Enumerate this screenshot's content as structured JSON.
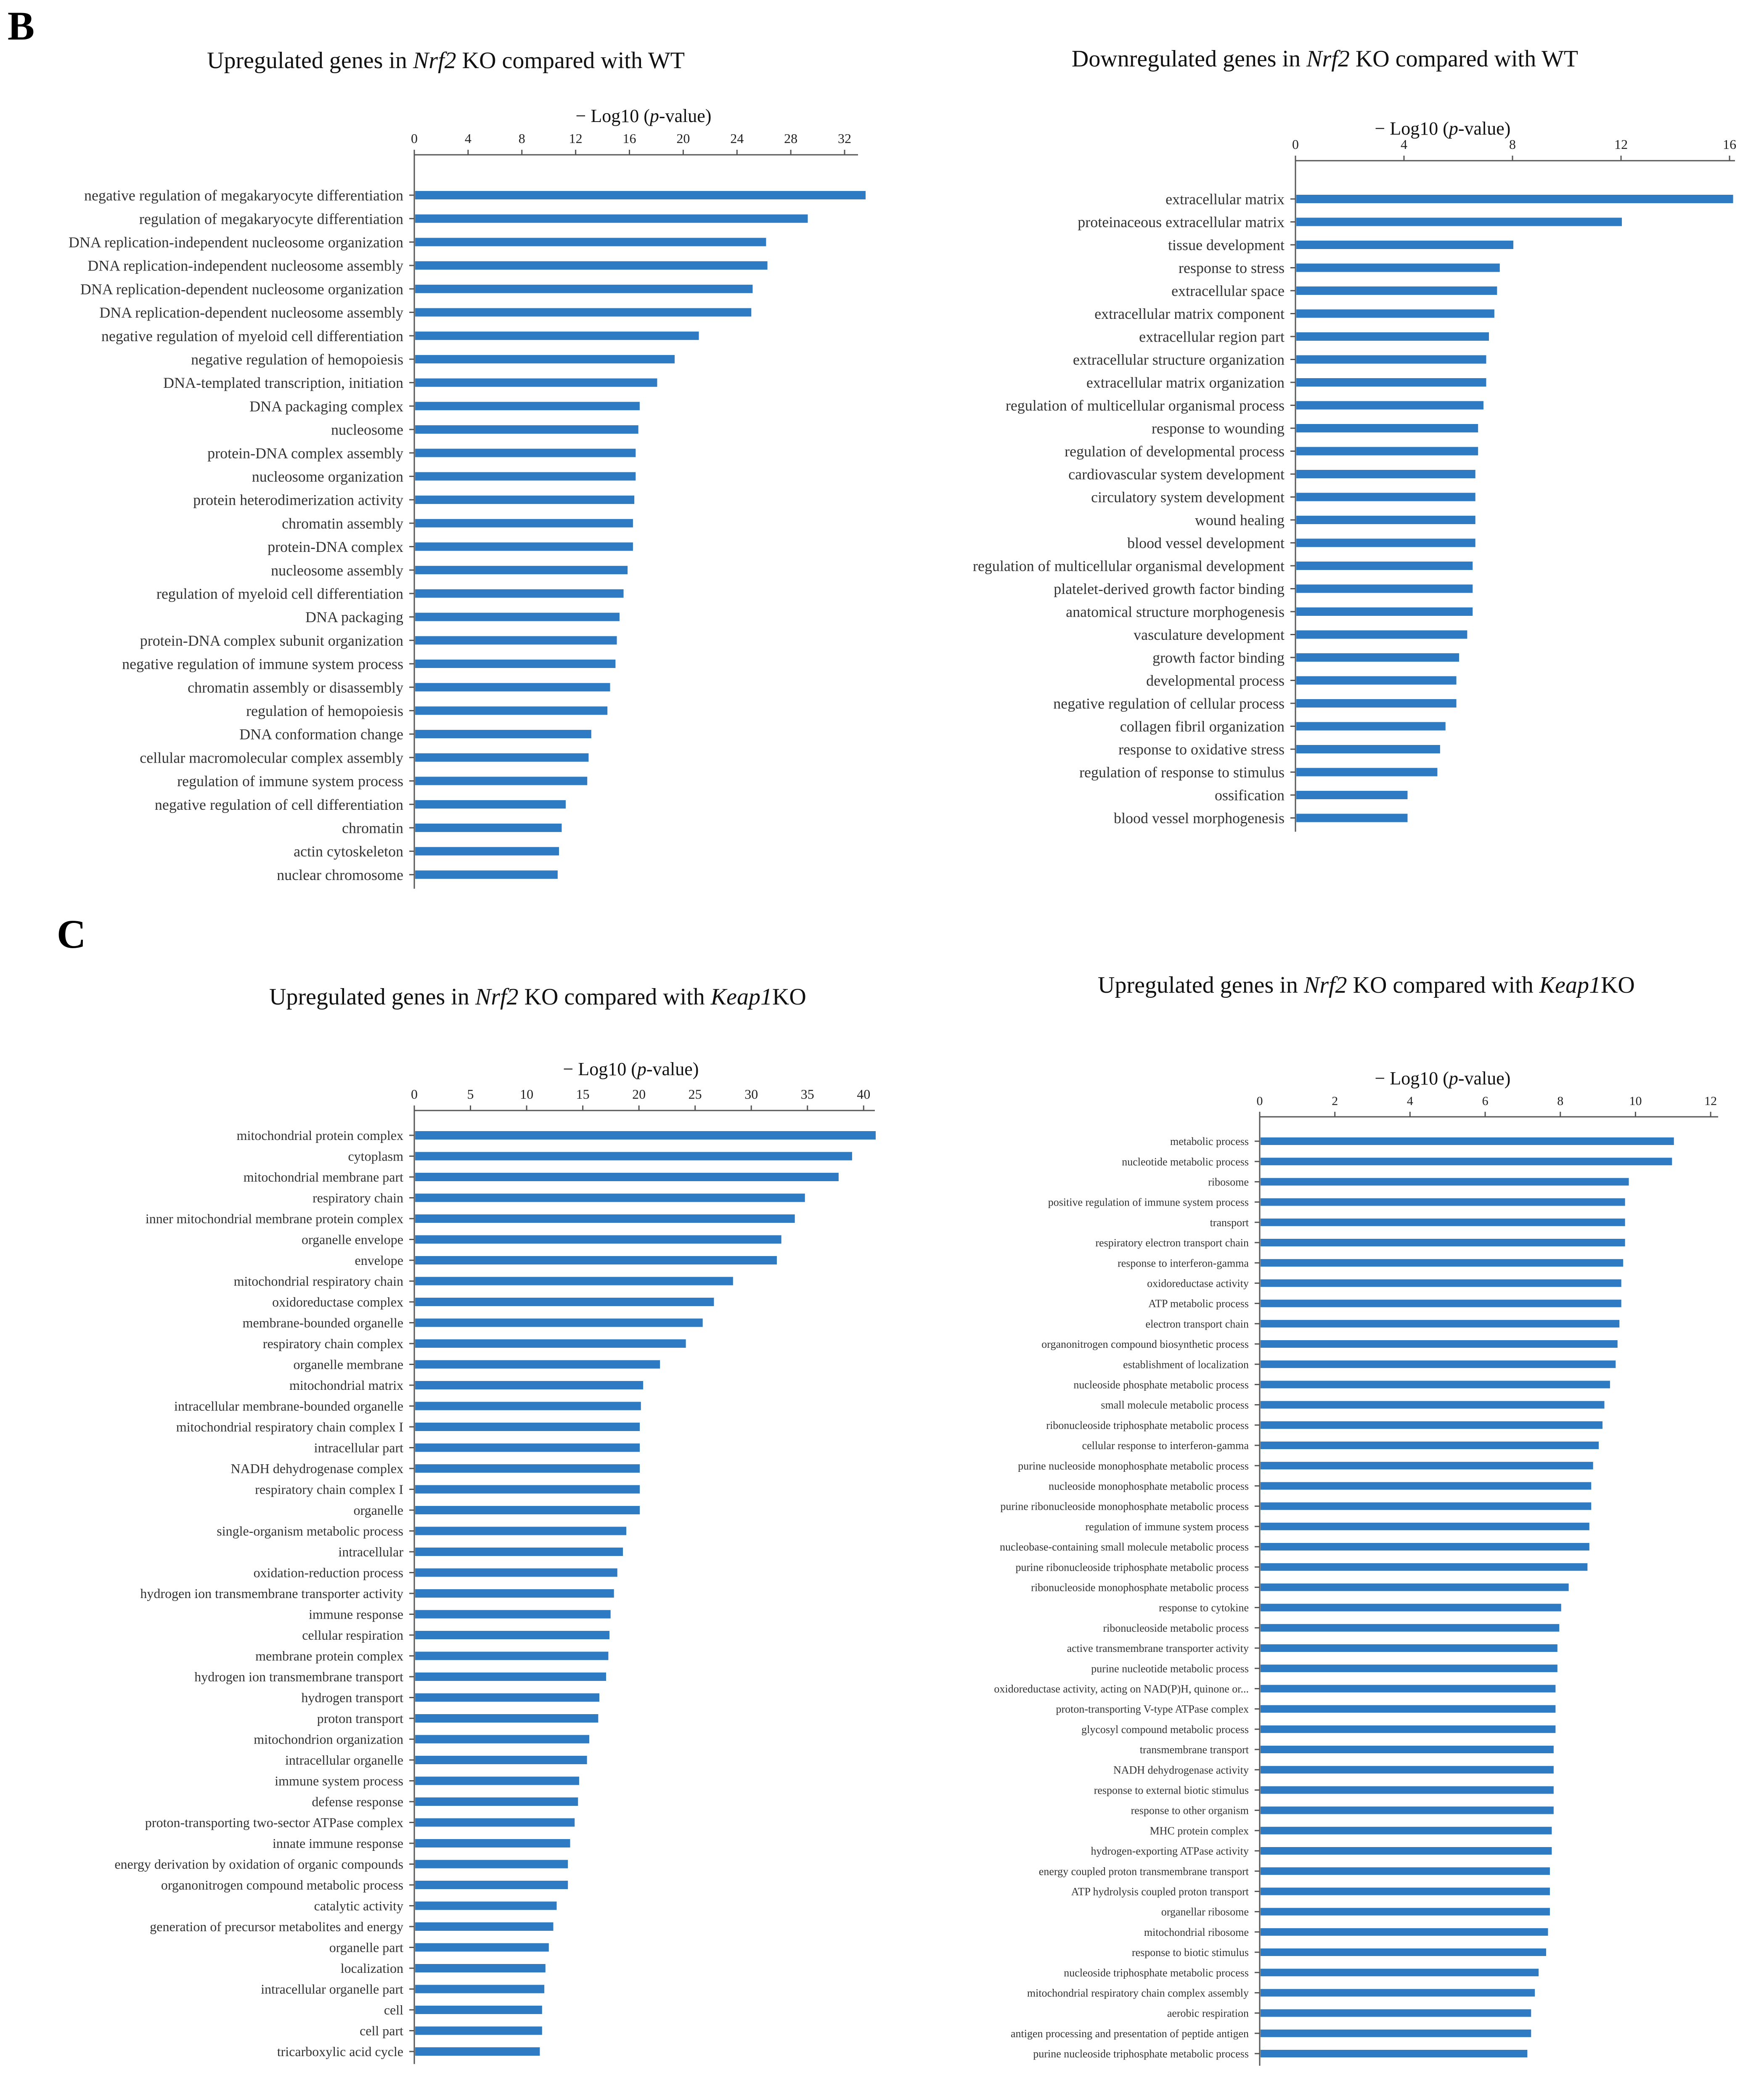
{
  "panel_letters": [
    "B",
    "C"
  ],
  "bar_color": "#2e7bc4",
  "chart_data": [
    {
      "id": "b-left",
      "type": "bar",
      "orientation": "horizontal",
      "title_pre": "Upregulated  genes in ",
      "title_italic": "Nrf2",
      "title_post": " KO compared with WT",
      "xlabel_pre": "− Log10 (",
      "xlabel_italic": "p",
      "xlabel_post": "-value)",
      "xlim": [
        0,
        33
      ],
      "ticks": [
        0,
        4,
        8,
        12,
        16,
        20,
        24,
        28,
        32
      ],
      "categories": [
        "negative regulation of megakaryocyte differentiation",
        "regulation of megakaryocyte differentiation",
        "DNA replication-independent nucleosome organization",
        "DNA replication-independent nucleosome assembly",
        "DNA replication-dependent nucleosome organization",
        "DNA replication-dependent nucleosome assembly",
        "negative regulation of myeloid cell differentiation",
        "negative regulation of hemopoiesis",
        "DNA-templated transcription, initiation",
        "DNA packaging complex",
        "nucleosome",
        "protein-DNA complex assembly",
        "nucleosome organization",
        "protein heterodimerization activity",
        "chromatin assembly",
        "protein-DNA complex",
        "nucleosome assembly",
        "regulation of myeloid cell differentiation",
        "DNA packaging",
        "protein-DNA complex subunit organization",
        "negative regulation of immune system process",
        "chromatin assembly or disassembly",
        "regulation of hemopoiesis",
        "DNA conformation change",
        "cellular macromolecular complex assembly",
        "regulation of immune system process",
        "negative regulation of cell differentiation",
        "chromatin",
        "actin cytoskeleton",
        "nuclear chromosome"
      ],
      "values": [
        33.5,
        29.2,
        26.1,
        26.2,
        25.1,
        25.0,
        21.1,
        19.3,
        18.0,
        16.7,
        16.6,
        16.4,
        16.4,
        16.3,
        16.2,
        16.2,
        15.8,
        15.5,
        15.2,
        15.0,
        14.9,
        14.5,
        14.3,
        13.1,
        12.9,
        12.8,
        11.2,
        10.9,
        10.7,
        10.6
      ]
    },
    {
      "id": "b-right",
      "type": "bar",
      "orientation": "horizontal",
      "title_pre": "Downregulated  genes in ",
      "title_italic": "Nrf2",
      "title_post": " KO compared with WT",
      "xlabel_pre": "− Log10 (",
      "xlabel_italic": "p",
      "xlabel_post": "-value)",
      "xlim": [
        0,
        16.2
      ],
      "ticks": [
        0,
        4,
        8,
        12,
        16
      ],
      "categories": [
        "extracellular matrix",
        "proteinaceous extracellular matrix",
        "tissue development",
        "response to stress",
        "extracellular space",
        "extracellular matrix component",
        "extracellular region part",
        "extracellular structure organization",
        "extracellular matrix organization",
        "regulation of multicellular organismal process",
        "response to wounding",
        "regulation of developmental process",
        "cardiovascular system development",
        "circulatory system development",
        "wound healing",
        "blood vessel development",
        "regulation of multicellular organismal development",
        "platelet-derived growth factor binding",
        "anatomical structure morphogenesis",
        "vasculature development",
        "growth factor binding",
        "developmental process",
        "negative regulation of cellular process",
        "collagen fibril organization",
        "response to oxidative stress",
        "regulation of response to stimulus",
        "ossification",
        "blood vessel morphogenesis"
      ],
      "values": [
        16.1,
        12.0,
        8.0,
        7.5,
        7.4,
        7.3,
        7.1,
        7.0,
        7.0,
        6.9,
        6.7,
        6.7,
        6.6,
        6.6,
        6.6,
        6.6,
        6.5,
        6.5,
        6.5,
        6.3,
        6.0,
        5.9,
        5.9,
        5.5,
        5.3,
        5.2,
        4.1,
        4.1
      ]
    },
    {
      "id": "c-left",
      "type": "bar",
      "orientation": "horizontal",
      "title_pre": "Upregulated  genes in ",
      "title_italic": "Nrf2",
      "title_post": " KO compared with ",
      "title_italic2": "Keap1",
      "title_post2": "KO",
      "xlabel_pre": "− Log10 (",
      "xlabel_italic": "p",
      "xlabel_post": "-value)",
      "xlim": [
        0,
        41
      ],
      "ticks": [
        0,
        5,
        10,
        15,
        20,
        25,
        30,
        35,
        40
      ],
      "categories": [
        "mitochondrial protein complex",
        "cytoplasm",
        "mitochondrial membrane part",
        "respiratory chain",
        "inner mitochondrial membrane protein complex",
        "organelle envelope",
        "envelope",
        "mitochondrial respiratory chain",
        "oxidoreductase complex",
        "membrane-bounded organelle",
        "respiratory chain complex",
        "organelle membrane",
        "mitochondrial matrix",
        "intracellular membrane-bounded organelle",
        "mitochondrial respiratory chain complex I",
        "intracellular part",
        "NADH dehydrogenase complex",
        "respiratory chain complex I",
        "organelle",
        "single-organism metabolic process",
        "intracellular",
        "oxidation-reduction process",
        "hydrogen ion transmembrane transporter activity",
        "immune response",
        "cellular respiration",
        "membrane protein complex",
        "hydrogen ion transmembrane transport",
        "hydrogen transport",
        "proton transport",
        "mitochondrion organization",
        "intracellular organelle",
        "immune system process",
        "defense response",
        "proton-transporting two-sector ATPase complex",
        "innate immune response",
        "energy derivation by oxidation of organic compounds",
        "organonitrogen compound metabolic process",
        "catalytic activity",
        "generation of precursor metabolites and energy",
        "organelle part",
        "localization",
        "intracellular organelle part",
        "cell",
        "cell part",
        "tricarboxylic acid cycle"
      ],
      "values": [
        41.0,
        38.9,
        37.7,
        34.7,
        33.8,
        32.6,
        32.2,
        28.3,
        26.6,
        25.6,
        24.1,
        21.8,
        20.3,
        20.1,
        20.0,
        20.0,
        20.0,
        20.0,
        20.0,
        18.8,
        18.5,
        18.0,
        17.7,
        17.4,
        17.3,
        17.2,
        17.0,
        16.4,
        16.3,
        15.5,
        15.3,
        14.6,
        14.5,
        14.2,
        13.8,
        13.6,
        13.6,
        12.6,
        12.3,
        11.9,
        11.6,
        11.5,
        11.3,
        11.3,
        11.1
      ]
    },
    {
      "id": "c-right",
      "type": "bar",
      "orientation": "horizontal",
      "title_pre": "Upregulated  genes in ",
      "title_italic": "Nrf2",
      "title_post": " KO compared with ",
      "title_italic2": "Keap1",
      "title_post2": "KO",
      "xlabel_pre": "− Log10 (",
      "xlabel_italic": "p",
      "xlabel_post": "-value)",
      "xlim": [
        0,
        12.2
      ],
      "ticks": [
        0,
        2,
        4,
        6,
        8,
        10,
        12
      ],
      "categories": [
        "metabolic process",
        "nucleotide metabolic process",
        "ribosome",
        "positive regulation of immune system process",
        "transport",
        "respiratory electron transport chain",
        "response to interferon-gamma",
        "oxidoreductase activity",
        "ATP metabolic process",
        "electron transport chain",
        "organonitrogen compound biosynthetic process",
        "establishment of localization",
        "nucleoside phosphate metabolic process",
        "small molecule metabolic process",
        "ribonucleoside triphosphate metabolic process",
        "cellular response to interferon-gamma",
        "purine nucleoside monophosphate metabolic process",
        "nucleoside monophosphate metabolic process",
        "purine ribonucleoside monophosphate metabolic process",
        "regulation of immune system process",
        "nucleobase-containing small molecule metabolic process",
        "purine ribonucleoside triphosphate metabolic process",
        "ribonucleoside monophosphate metabolic process",
        "response to cytokine",
        "ribonucleoside metabolic process",
        "active transmembrane transporter activity",
        "purine nucleotide metabolic process",
        "oxidoreductase activity, acting on NAD(P)H, quinone or...",
        "proton-transporting V-type ATPase complex",
        "glycosyl compound metabolic process",
        "transmembrane transport",
        "NADH dehydrogenase activity",
        "response to external biotic stimulus",
        "response to other organism",
        "MHC protein complex",
        "hydrogen-exporting ATPase activity",
        "energy coupled proton transmembrane transport",
        "ATP hydrolysis coupled proton transport",
        "organellar ribosome",
        "mitochondrial ribosome",
        "response to biotic stimulus",
        "nucleoside triphosphate metabolic process",
        "mitochondrial respiratory chain complex assembly",
        "aerobic respiration",
        "antigen processing and presentation of peptide antigen",
        "purine nucleoside triphosphate metabolic process"
      ],
      "values": [
        11.0,
        10.95,
        9.8,
        9.7,
        9.7,
        9.7,
        9.65,
        9.6,
        9.6,
        9.55,
        9.5,
        9.45,
        9.3,
        9.15,
        9.1,
        9.0,
        8.85,
        8.8,
        8.8,
        8.75,
        8.75,
        8.7,
        8.2,
        8.0,
        7.95,
        7.9,
        7.9,
        7.85,
        7.85,
        7.85,
        7.8,
        7.8,
        7.8,
        7.8,
        7.75,
        7.75,
        7.7,
        7.7,
        7.7,
        7.65,
        7.6,
        7.4,
        7.3,
        7.2,
        7.2,
        7.1
      ]
    }
  ]
}
